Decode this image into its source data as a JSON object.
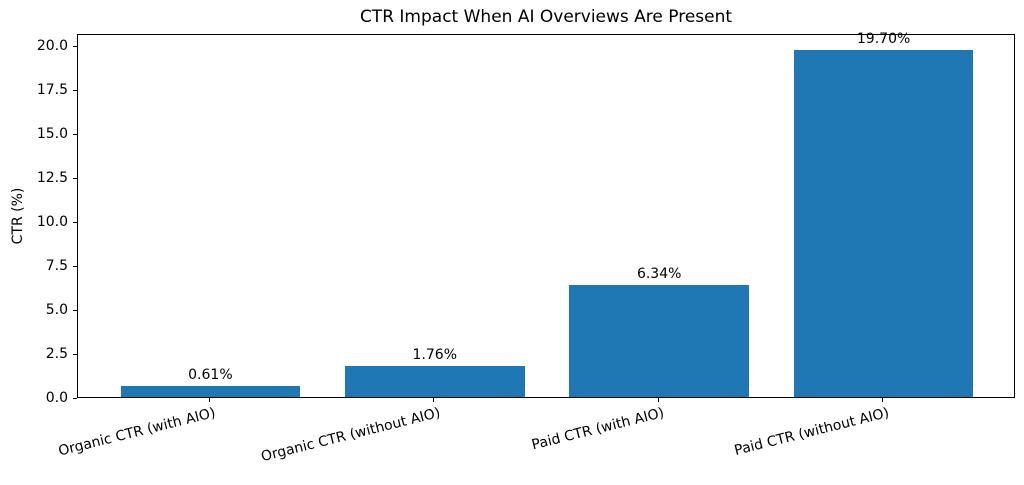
{
  "chart_data": {
    "type": "bar",
    "title": "CTR Impact When AI Overviews Are Present",
    "xlabel": "",
    "ylabel": "CTR (%)",
    "categories": [
      "Organic CTR (with AIO)",
      "Organic CTR (without AIO)",
      "Paid CTR (with AIO)",
      "Paid CTR (without AIO)"
    ],
    "values": [
      0.61,
      1.76,
      6.34,
      19.7
    ],
    "bar_labels": [
      "0.61%",
      "1.76%",
      "6.34%",
      "19.70%"
    ],
    "y_ticks": [
      0,
      2.5,
      5,
      7.5,
      10,
      12.5,
      15,
      17.5,
      20
    ],
    "y_tick_labels": [
      "0.0",
      "2.5",
      "5.0",
      "7.5",
      "10.0",
      "12.5",
      "15.0",
      "17.5",
      "20.0"
    ],
    "ylim": [
      0,
      20.69
    ],
    "xlim": [
      -0.59,
      3.59
    ],
    "bar_width_units": 0.8,
    "bar_color": "#1f77b4",
    "grid": false,
    "legend_position": "none",
    "x_tick_label_rotation_deg": 14
  }
}
